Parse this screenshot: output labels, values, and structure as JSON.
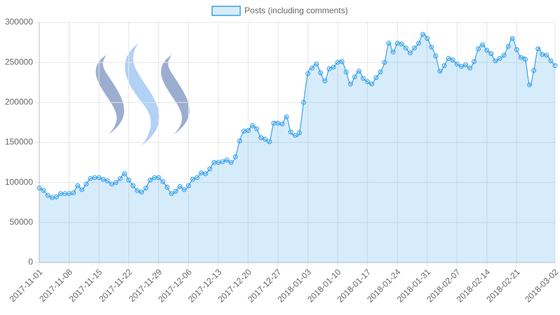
{
  "chart_data": {
    "type": "line",
    "legend": "top",
    "grid": true,
    "series": [
      {
        "name": "Posts (including comments)",
        "color": "#36a2eb",
        "fill": "rgba(54,162,235,0.2)",
        "values": [
          93000,
          90000,
          84000,
          81000,
          82000,
          86000,
          86000,
          86000,
          87000,
          96000,
          91000,
          98000,
          105000,
          106000,
          106000,
          104000,
          102000,
          98000,
          100000,
          105000,
          111000,
          103000,
          96000,
          90000,
          88000,
          93000,
          103000,
          106000,
          106000,
          101000,
          94000,
          86000,
          89000,
          95000,
          91000,
          96000,
          104000,
          106000,
          112000,
          111000,
          117000,
          125000,
          125000,
          126000,
          128000,
          125000,
          132000,
          152000,
          164000,
          165000,
          171000,
          167000,
          156000,
          154000,
          151000,
          174000,
          174000,
          173000,
          182000,
          163000,
          159000,
          162000,
          200000,
          236000,
          243000,
          248000,
          237000,
          227000,
          242000,
          244000,
          250000,
          251000,
          238000,
          223000,
          232000,
          239000,
          230000,
          226000,
          223000,
          231000,
          238000,
          250000,
          274000,
          263000,
          274000,
          273000,
          268000,
          262000,
          268000,
          274000,
          285000,
          280000,
          269000,
          258000,
          239000,
          246000,
          255000,
          253000,
          248000,
          245000,
          247000,
          243000,
          251000,
          267000,
          272000,
          265000,
          261000,
          252000,
          255000,
          259000,
          270000,
          280000,
          266000,
          256000,
          254000,
          222000,
          240000,
          267000,
          260000,
          259000,
          252000,
          246000
        ]
      }
    ],
    "x": [
      "2017-11-01",
      "2017-11-02",
      "2017-11-03",
      "2017-11-04",
      "2017-11-05",
      "2017-11-06",
      "2017-11-07",
      "2017-11-08",
      "2017-11-09",
      "2017-11-10",
      "2017-11-11",
      "2017-11-12",
      "2017-11-13",
      "2017-11-14",
      "2017-11-15",
      "2017-11-16",
      "2017-11-17",
      "2017-11-18",
      "2017-11-19",
      "2017-11-20",
      "2017-11-21",
      "2017-11-22",
      "2017-11-23",
      "2017-11-24",
      "2017-11-25",
      "2017-11-26",
      "2017-11-27",
      "2017-11-28",
      "2017-11-29",
      "2017-11-30",
      "2017-12-01",
      "2017-12-02",
      "2017-12-03",
      "2017-12-04",
      "2017-12-05",
      "2017-12-06",
      "2017-12-07",
      "2017-12-08",
      "2017-12-09",
      "2017-12-10",
      "2017-12-11",
      "2017-12-12",
      "2017-12-13",
      "2017-12-14",
      "2017-12-15",
      "2017-12-16",
      "2017-12-17",
      "2017-12-18",
      "2017-12-19",
      "2017-12-20",
      "2017-12-21",
      "2017-12-22",
      "2017-12-23",
      "2017-12-24",
      "2017-12-25",
      "2017-12-26",
      "2017-12-27",
      "2017-12-28",
      "2017-12-29",
      "2017-12-30",
      "2017-12-31",
      "2018-01-01",
      "2018-01-02",
      "2018-01-03",
      "2018-01-04",
      "2018-01-05",
      "2018-01-06",
      "2018-01-07",
      "2018-01-08",
      "2018-01-09",
      "2018-01-10",
      "2018-01-11",
      "2018-01-12",
      "2018-01-13",
      "2018-01-14",
      "2018-01-15",
      "2018-01-16",
      "2018-01-17",
      "2018-01-18",
      "2018-01-19",
      "2018-01-20",
      "2018-01-21",
      "2018-01-22",
      "2018-01-23",
      "2018-01-24",
      "2018-01-25",
      "2018-01-26",
      "2018-01-27",
      "2018-01-28",
      "2018-01-29",
      "2018-01-30",
      "2018-01-31",
      "2018-02-01",
      "2018-02-02",
      "2018-02-03",
      "2018-02-04",
      "2018-02-05",
      "2018-02-06",
      "2018-02-07",
      "2018-02-08",
      "2018-02-09",
      "2018-02-10",
      "2018-02-11",
      "2018-02-12",
      "2018-02-13",
      "2018-02-14",
      "2018-02-15",
      "2018-02-16",
      "2018-02-17",
      "2018-02-18",
      "2018-02-19",
      "2018-02-20",
      "2018-02-21",
      "2018-02-22",
      "2018-02-23",
      "2018-02-24",
      "2018-02-25",
      "2018-02-26",
      "2018-02-27",
      "2018-02-28",
      "2018-03-01",
      "2018-03-02"
    ],
    "xlim": [
      "2017-11-01",
      "2018-03-02"
    ],
    "xticks": [
      "2017-11-01",
      "2017-11-08",
      "2017-11-15",
      "2017-11-22",
      "2017-11-29",
      "2017-12-06",
      "2017-12-13",
      "2017-12-20",
      "2017-12-27",
      "2018-01-03",
      "2018-01-10",
      "2018-01-17",
      "2018-01-24",
      "2018-01-31",
      "2018-02-07",
      "2018-02-14",
      "2018-02-21",
      "2018-03-02"
    ],
    "ylim": [
      0,
      300000
    ],
    "yticks": [
      0,
      50000,
      100000,
      150000,
      200000,
      250000,
      300000
    ]
  }
}
